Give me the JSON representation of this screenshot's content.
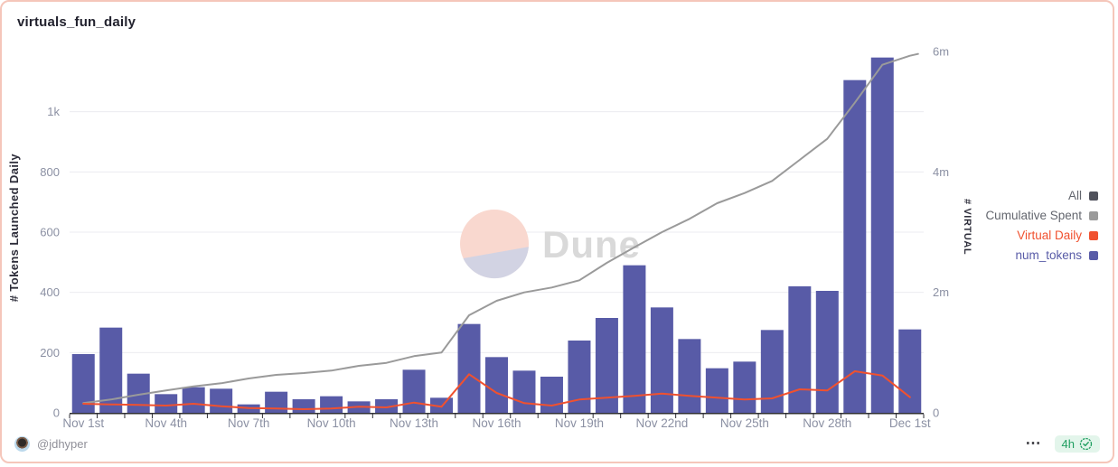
{
  "header": {
    "title": "virtuals_fun_daily"
  },
  "watermark": {
    "text": "Dune"
  },
  "legend": [
    {
      "label": "All",
      "color": "#50525c",
      "label_color": "#63666e"
    },
    {
      "label": "Cumulative Spent",
      "color": "#9a9a9a",
      "label_color": "#63666e"
    },
    {
      "label": "Virtual Daily",
      "color": "#f0512f",
      "label_color": "#f0512f"
    },
    {
      "label": "num_tokens",
      "color": "#585ba7",
      "label_color": "#585ba7"
    }
  ],
  "chart_data": {
    "type": "bar",
    "title": "virtuals_fun_daily",
    "grid": true,
    "legend_position": "right",
    "categories": [
      "Nov 1",
      "Nov 2",
      "Nov 3",
      "Nov 4",
      "Nov 5",
      "Nov 6",
      "Nov 7",
      "Nov 8",
      "Nov 9",
      "Nov 10",
      "Nov 11",
      "Nov 12",
      "Nov 13",
      "Nov 14",
      "Nov 15",
      "Nov 16",
      "Nov 17",
      "Nov 18",
      "Nov 19",
      "Nov 20",
      "Nov 21",
      "Nov 22",
      "Nov 23",
      "Nov 24",
      "Nov 25",
      "Nov 26",
      "Nov 27",
      "Nov 28",
      "Nov 29",
      "Nov 30",
      "Dec 1"
    ],
    "x_axis_labels_shown": [
      "Nov 1st",
      "Nov 4th",
      "Nov 7th",
      "Nov 10th",
      "Nov 13th",
      "Nov 16th",
      "Nov 19th",
      "Nov 22nd",
      "Nov 25th",
      "Nov 28th",
      "Dec 1st"
    ],
    "x_label_every": 3,
    "series": [
      {
        "name": "num_tokens",
        "type": "bar",
        "axis": "left",
        "color": "#585ba7",
        "values": [
          195,
          283,
          130,
          62,
          85,
          80,
          28,
          70,
          45,
          55,
          38,
          45,
          143,
          50,
          295,
          185,
          140,
          120,
          240,
          315,
          490,
          350,
          245,
          148,
          170,
          275,
          420,
          405,
          1105,
          1180,
          277
        ]
      },
      {
        "name": "Cumulative Spent",
        "type": "line",
        "axis": "right",
        "color": "#9a9a9a",
        "values_millions": [
          0.16,
          0.22,
          0.3,
          0.37,
          0.44,
          0.49,
          0.57,
          0.63,
          0.66,
          0.7,
          0.78,
          0.83,
          0.94,
          1.0,
          1.62,
          1.86,
          2.0,
          2.08,
          2.2,
          2.49,
          2.75,
          3.0,
          3.22,
          3.48,
          3.65,
          3.85,
          4.2,
          4.55,
          5.15,
          5.78,
          5.93
        ]
      },
      {
        "name": "Virtual Daily",
        "type": "line",
        "axis": "right",
        "color": "#f0512f",
        "values_millions": [
          0.15,
          0.14,
          0.13,
          0.12,
          0.15,
          0.11,
          0.08,
          0.07,
          0.06,
          0.07,
          0.1,
          0.09,
          0.17,
          0.1,
          0.64,
          0.33,
          0.16,
          0.12,
          0.22,
          0.25,
          0.28,
          0.32,
          0.28,
          0.25,
          0.22,
          0.24,
          0.39,
          0.37,
          0.69,
          0.62,
          0.26
        ]
      }
    ],
    "left_axis": {
      "label": "# Tokens Launched Daily",
      "range": [
        0,
        1200
      ],
      "ticks": [
        {
          "value": 0,
          "label": "0"
        },
        {
          "value": 200,
          "label": "200"
        },
        {
          "value": 400,
          "label": "400"
        },
        {
          "value": 600,
          "label": "600"
        },
        {
          "value": 800,
          "label": "800"
        },
        {
          "value": 1000,
          "label": "1k"
        }
      ]
    },
    "right_axis": {
      "label": "# VIRTUAL",
      "range_millions": [
        0,
        6
      ],
      "ticks": [
        {
          "value": 0,
          "label": "0"
        },
        {
          "value": 2,
          "label": "2m"
        },
        {
          "value": 4,
          "label": "4m"
        },
        {
          "value": 6,
          "label": "6m"
        }
      ]
    }
  },
  "style": {
    "grid_color": "#ebebf0",
    "baseline_color": "#2e2e33",
    "tick_text_color": "#8b90a3",
    "watermark_pink": "#f9d8cf",
    "watermark_lavender": "#d2d3e3",
    "watermark_text_color": "#d9d9d9"
  },
  "footer": {
    "username": "@jdhyper",
    "menu_label": "⋯",
    "badge": {
      "label": "4h"
    }
  }
}
